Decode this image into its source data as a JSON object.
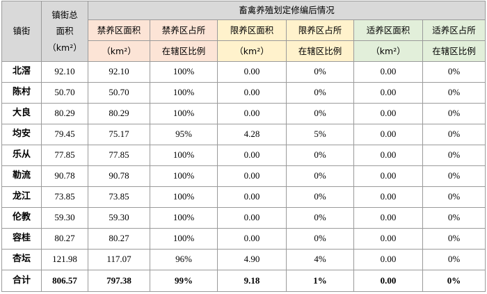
{
  "header": {
    "town": "镇街",
    "total_area": [
      "镇街总",
      "面积",
      "（km²）"
    ],
    "group_title": "畜禽养殖划定修编后情况",
    "columns": [
      [
        "禁养区面积",
        "（km²）"
      ],
      [
        "禁养区占所",
        "在辖区比例"
      ],
      [
        "限养区面积",
        "（km²）"
      ],
      [
        "限养区占所",
        "在辖区比例"
      ],
      [
        "适养区面积",
        "（km²）"
      ],
      [
        "适养区占所",
        "在辖区比例"
      ]
    ]
  },
  "rows": [
    {
      "town": "北滘",
      "cells": [
        "92.10",
        "92.10",
        "100%",
        "0.00",
        "0%",
        "0.00",
        "0%"
      ]
    },
    {
      "town": "陈村",
      "cells": [
        "50.70",
        "50.70",
        "100%",
        "0.00",
        "0%",
        "0.00",
        "0%"
      ]
    },
    {
      "town": "大良",
      "cells": [
        "80.29",
        "80.29",
        "100%",
        "0.00",
        "0%",
        "0.00",
        "0%"
      ]
    },
    {
      "town": "均安",
      "cells": [
        "79.45",
        "75.17",
        "95%",
        "4.28",
        "5%",
        "0.00",
        "0%"
      ]
    },
    {
      "town": "乐从",
      "cells": [
        "77.85",
        "77.85",
        "100%",
        "0.00",
        "0%",
        "0.00",
        "0%"
      ]
    },
    {
      "town": "勒流",
      "cells": [
        "90.78",
        "90.78",
        "100%",
        "0.00",
        "0%",
        "0.00",
        "0%"
      ]
    },
    {
      "town": "龙江",
      "cells": [
        "73.85",
        "73.85",
        "100%",
        "0.00",
        "0%",
        "0.00",
        "0%"
      ]
    },
    {
      "town": "伦教",
      "cells": [
        "59.30",
        "59.30",
        "100%",
        "0.00",
        "0%",
        "0.00",
        "0%"
      ]
    },
    {
      "town": "容桂",
      "cells": [
        "80.27",
        "80.27",
        "100%",
        "0.00",
        "0%",
        "0.00",
        "0%"
      ]
    },
    {
      "town": "杏坛",
      "cells": [
        "121.98",
        "117.07",
        "96%",
        "4.90",
        "4%",
        "0.00",
        "0%"
      ]
    }
  ],
  "total": {
    "town": "合计",
    "cells": [
      "806.57",
      "797.38",
      "99%",
      "9.18",
      "1%",
      "0.00",
      "0%"
    ]
  }
}
